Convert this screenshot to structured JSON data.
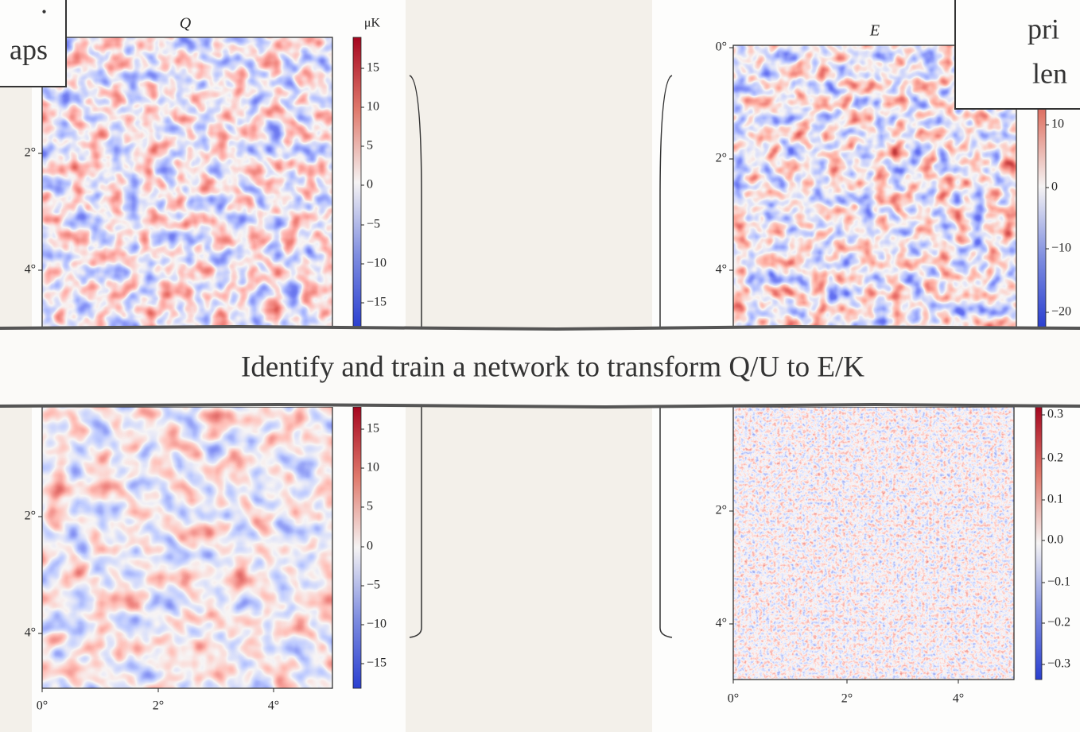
{
  "callouts": {
    "left": ".",
    "left_2": "aps",
    "right": "pri",
    "right_2": "len"
  },
  "panels": [
    {
      "title": "Q",
      "unit": "μK",
      "y_labels": [
        "2°",
        "4°"
      ],
      "colorbar_labels": [
        "15",
        "10",
        "5",
        "0",
        "−5",
        "−10",
        "−15"
      ]
    },
    {
      "title": "E",
      "y_labels": [
        "0°",
        "2°",
        "4°"
      ],
      "colorbar_labels": [
        "10",
        "0",
        "−10",
        "−20"
      ]
    },
    {
      "y_labels": [
        "2°",
        "4°"
      ],
      "x_labels": [
        "0°",
        "2°",
        "4°"
      ],
      "colorbar_labels": [
        "15",
        "10",
        "5",
        "0",
        "−5",
        "−10",
        "−15"
      ]
    },
    {
      "y_labels": [
        "2°",
        "4°"
      ],
      "x_labels": [
        "0°",
        "2°",
        "4°"
      ],
      "colorbar_labels": [
        "0.3",
        "0.2",
        "0.1",
        "0.0",
        "−0.1",
        "−0.2",
        "−0.3"
      ]
    }
  ],
  "banner": "Identify and train a network to transform Q/U to E/K"
}
